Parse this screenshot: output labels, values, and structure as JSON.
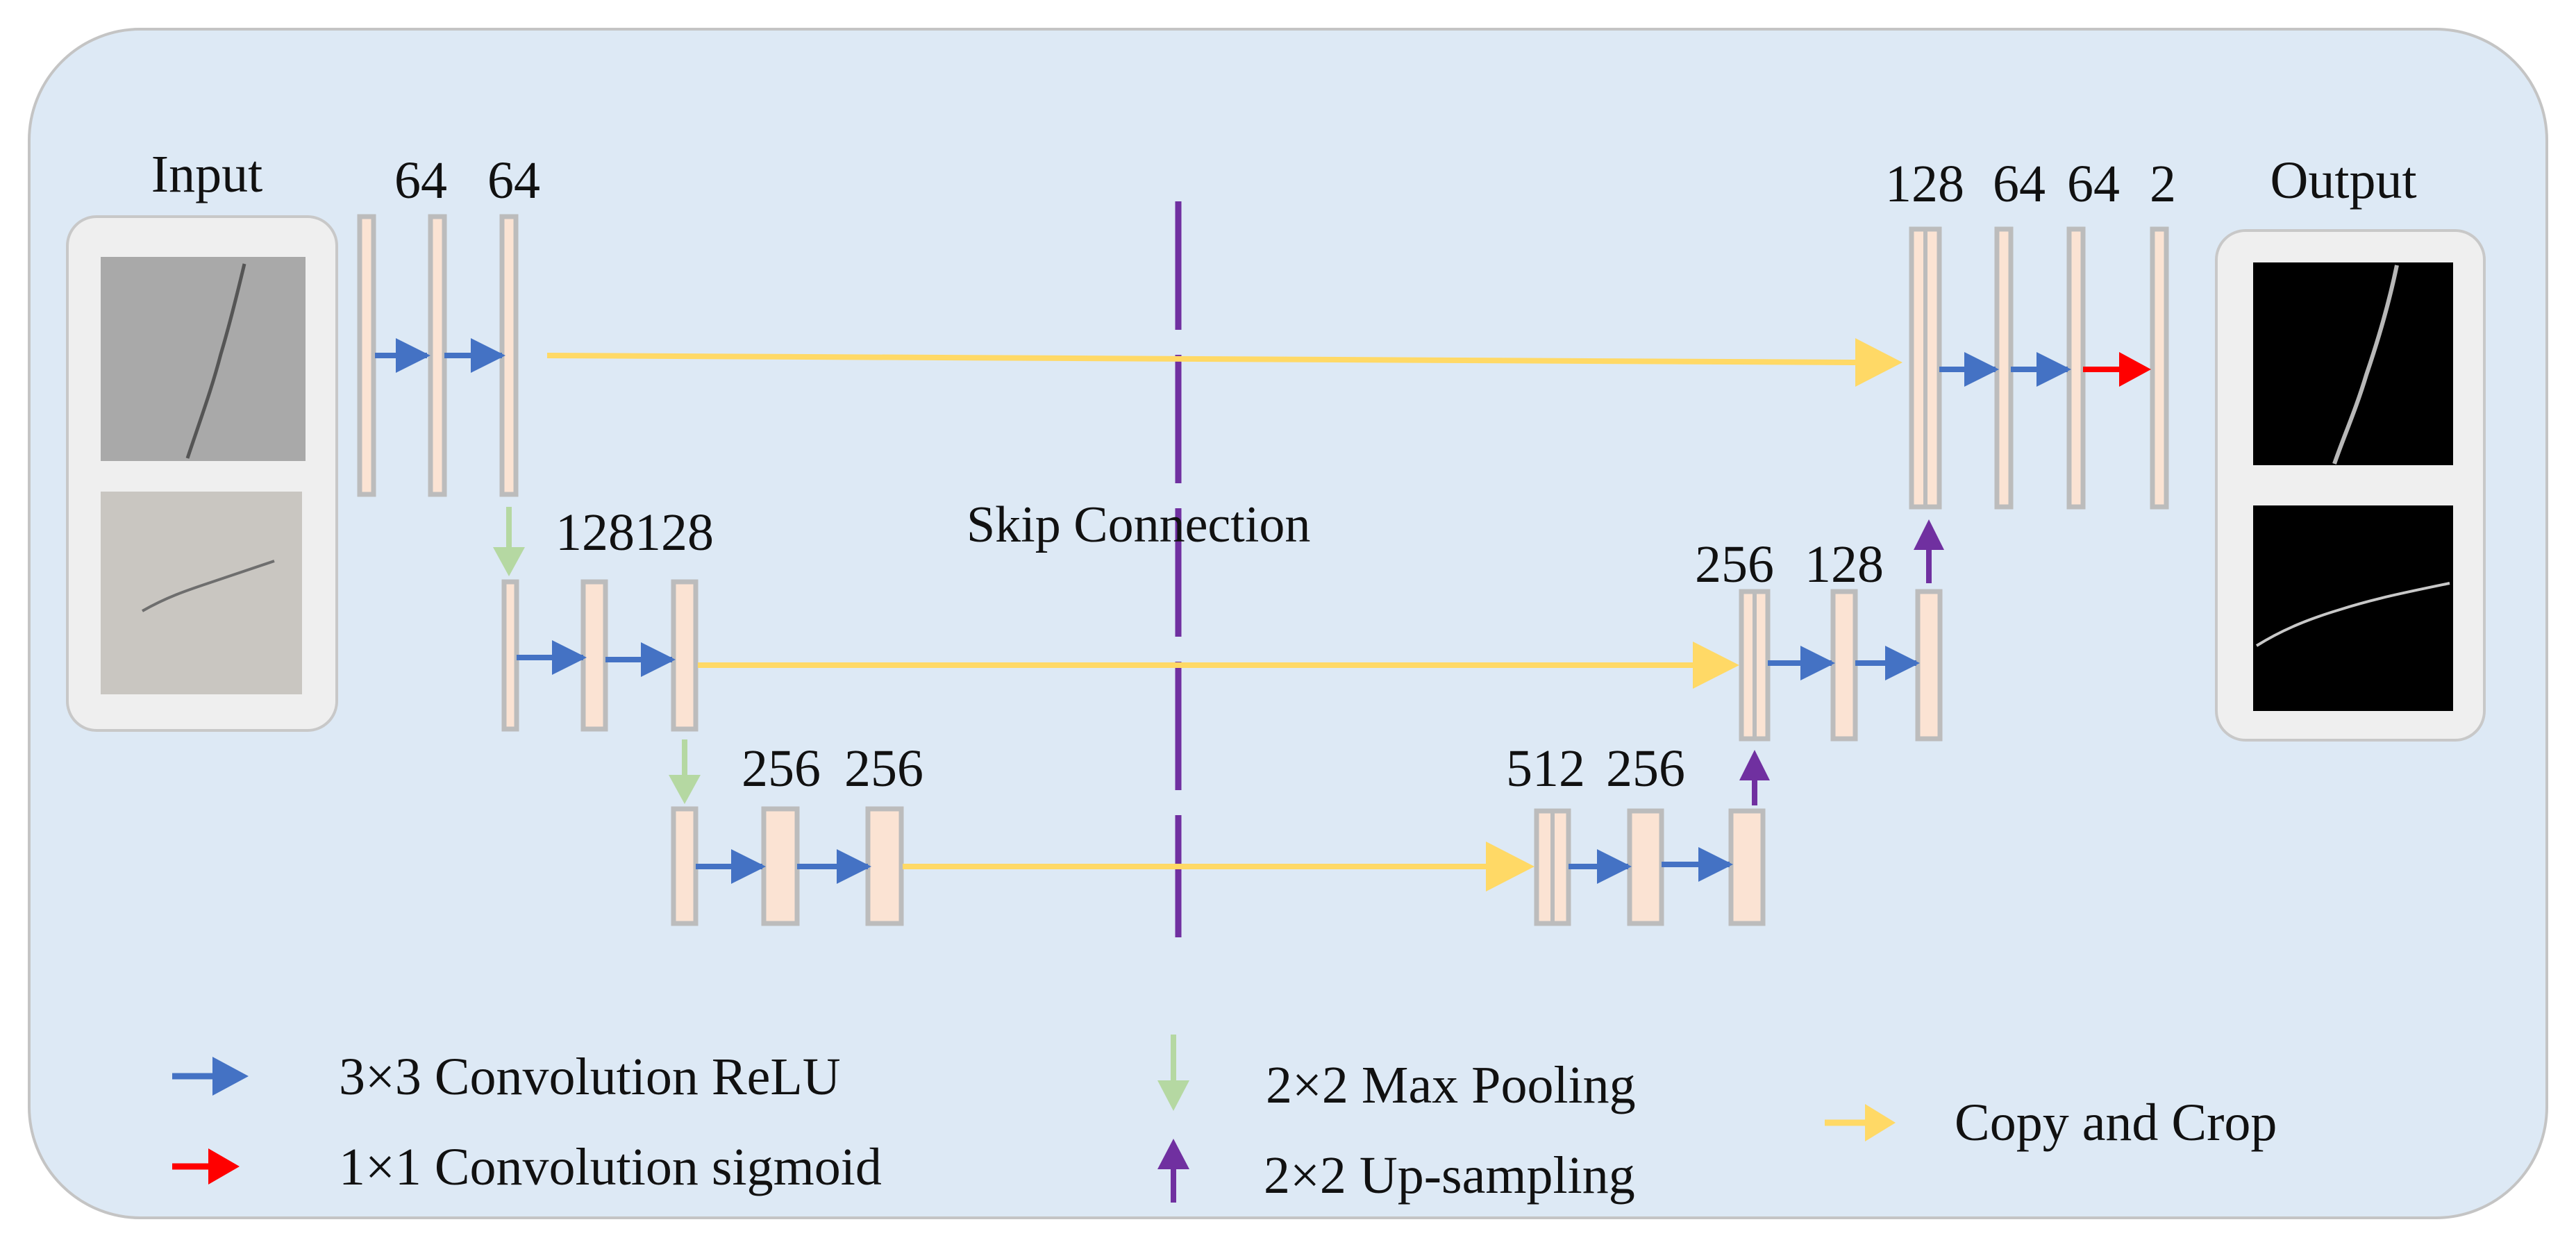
{
  "colors": {
    "panel_bg": "#dde9f5",
    "panel_border": "#c4c4c4",
    "layer_fill": "#fbe3d3",
    "layer_stroke": "#bcbcbc",
    "conv_relu_arrow": "#4472c4",
    "conv_sigmoid_arrow": "#ff0000",
    "max_pool_arrow": "#b5d8a2",
    "up_sample_arrow": "#7030a0",
    "copy_crop_arrow": "#ffd966",
    "skip_line": "#7030a0"
  },
  "input": {
    "title": "Input"
  },
  "output": {
    "title": "Output"
  },
  "encoder": {
    "level1": {
      "labels": [
        "64",
        "64"
      ]
    },
    "level2": {
      "labels": [
        "128128"
      ]
    },
    "level3": {
      "labels": [
        "256",
        "256"
      ]
    }
  },
  "decoder": {
    "level1": {
      "labels": [
        "128",
        "64",
        "64",
        "2"
      ]
    },
    "level2": {
      "labels": [
        "256",
        "128"
      ]
    },
    "level3": {
      "labels": [
        "512",
        "256"
      ]
    }
  },
  "skip_connection_label": "Skip Connection",
  "legend": {
    "conv_relu": "3×3 Convolution ReLU",
    "conv_sigmoid": "1×1 Convolution sigmoid",
    "max_pooling": "2×2 Max Pooling",
    "up_sampling": "2×2 Up-sampling",
    "copy_crop": "Copy and Crop"
  }
}
